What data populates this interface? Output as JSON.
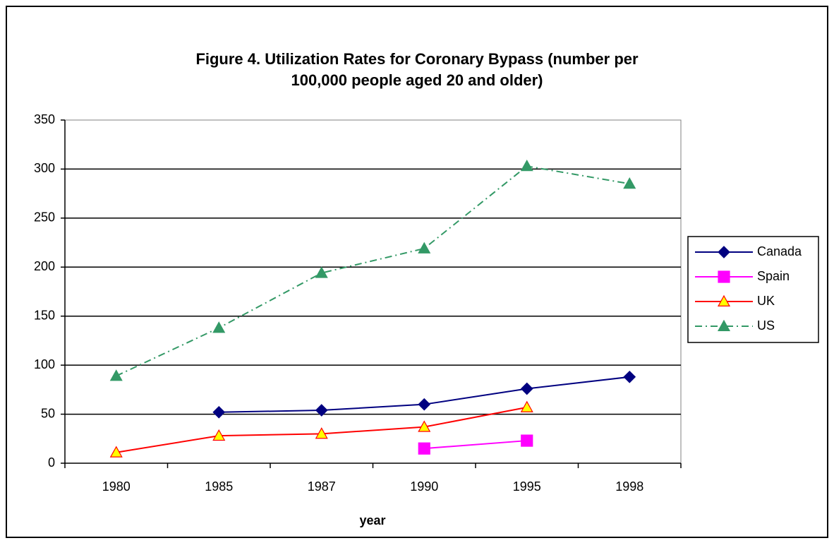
{
  "chart_data": {
    "type": "line",
    "title": [
      "Figure 4. Utilization Rates for Coronary Bypass (number per",
      "100,000 people aged 20 and older)"
    ],
    "x_label": "year",
    "categories": [
      "1980",
      "1985",
      "1987",
      "1990",
      "1995",
      "1998"
    ],
    "series": [
      {
        "name": "Canada",
        "color": "#000080",
        "marker": "diamond",
        "marker_fill": "#000080",
        "dash": "solid",
        "values": [
          null,
          52,
          54,
          60,
          76,
          88
        ]
      },
      {
        "name": "Spain",
        "color": "#ff00ff",
        "marker": "square",
        "marker_fill": "#ff00ff",
        "dash": "solid",
        "values": [
          null,
          null,
          null,
          15,
          23,
          null
        ]
      },
      {
        "name": "UK",
        "color": "#ff0000",
        "marker": "triangle",
        "marker_fill": "#ffff00",
        "dash": "solid",
        "values": [
          11,
          28,
          30,
          37,
          57,
          null
        ]
      },
      {
        "name": "US",
        "color": "#339966",
        "marker": "triangle",
        "marker_fill": "#339966",
        "dash": "dashdot",
        "values": [
          89,
          138,
          194,
          219,
          303,
          285
        ]
      }
    ],
    "ylim": [
      0,
      350
    ],
    "yticks": [
      0,
      50,
      100,
      150,
      200,
      250,
      300,
      350
    ],
    "grid": true,
    "legend": "right"
  }
}
